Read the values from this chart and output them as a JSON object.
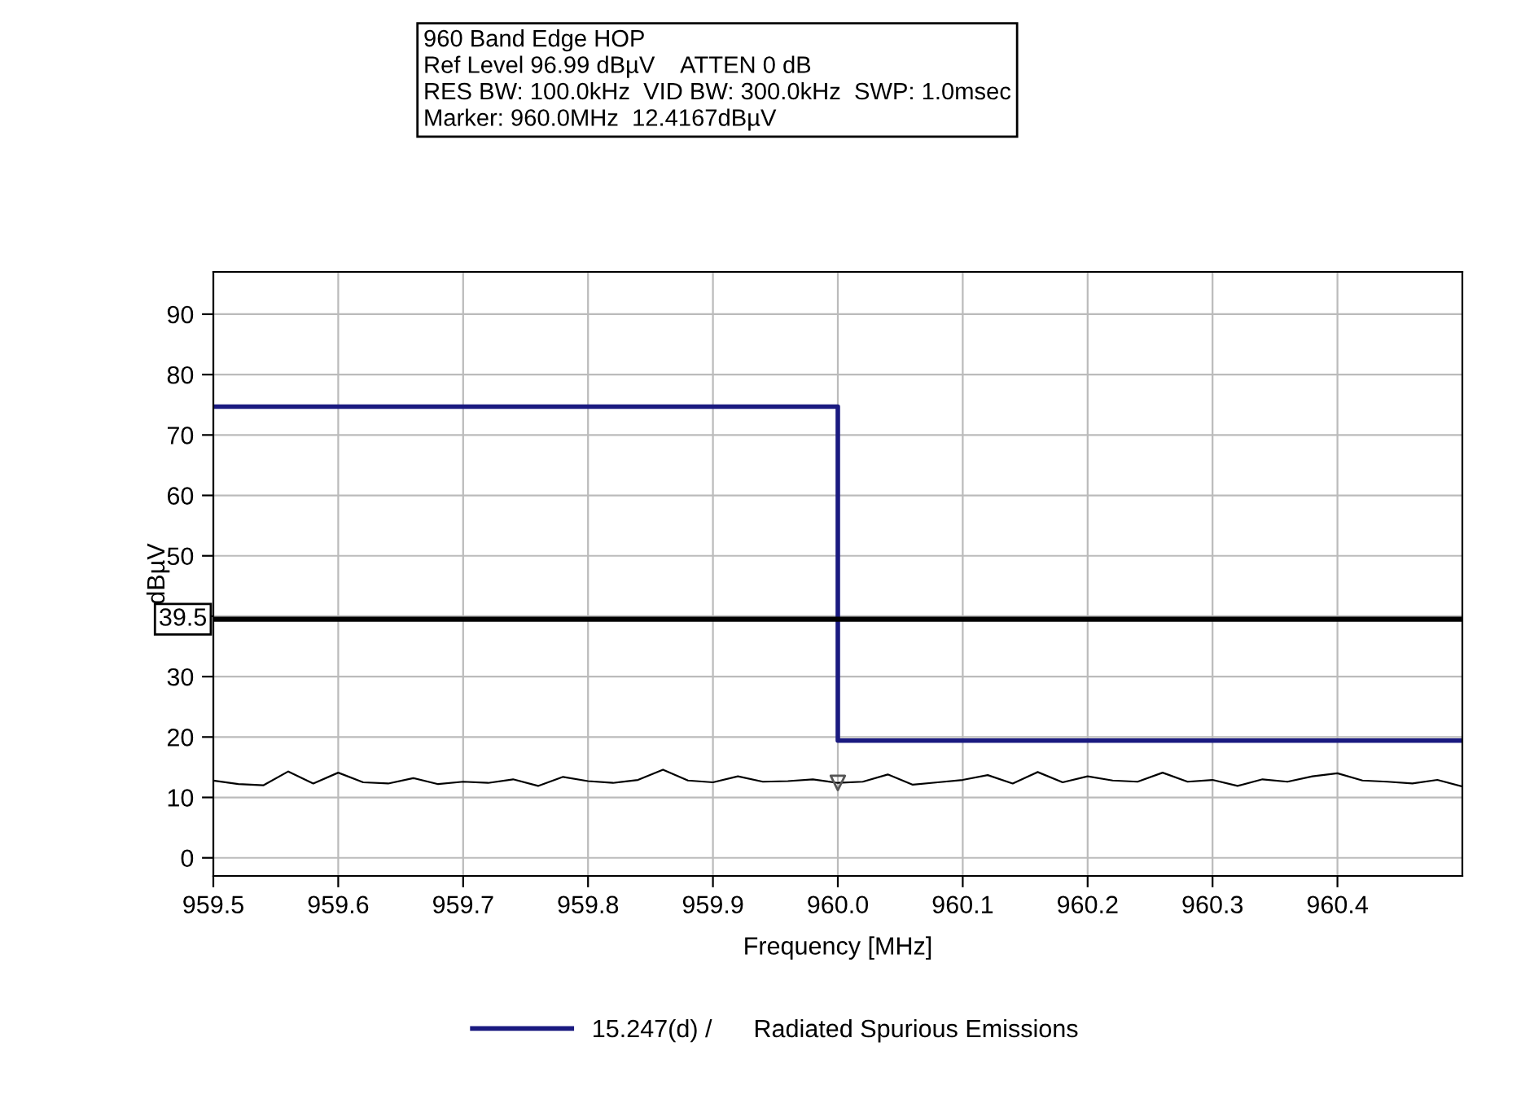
{
  "chart_data": {
    "type": "line",
    "annotations": [
      "960 Band Edge HOP",
      "Ref Level 96.99 dBµV    ATTEN 0 dB",
      "RES BW: 100.0kHz  VID BW: 300.0kHz  SWP: 1.0msec",
      "Marker: 960.0MHz  12.4167dBµV"
    ],
    "xlabel": "Frequency [MHz]",
    "ylabel": "dBµV",
    "xlim": [
      959.5,
      960.5
    ],
    "ylim": [
      -3,
      97
    ],
    "xticks": [
      {
        "value": 959.5,
        "label": "959.5"
      },
      {
        "value": 959.6,
        "label": "959.6"
      },
      {
        "value": 959.7,
        "label": "959.7"
      },
      {
        "value": 959.8,
        "label": "959.8"
      },
      {
        "value": 959.9,
        "label": "959.9"
      },
      {
        "value": 960.0,
        "label": "960.0"
      },
      {
        "value": 960.1,
        "label": "960.1"
      },
      {
        "value": 960.2,
        "label": "960.2"
      },
      {
        "value": 960.3,
        "label": "960.3"
      },
      {
        "value": 960.4,
        "label": "960.4"
      }
    ],
    "yticks": [
      0,
      10,
      20,
      30,
      {
        "value": 40,
        "label": null
      },
      50,
      60,
      70,
      80,
      90
    ],
    "grid": true,
    "legend": "bottom",
    "ref_lines": [
      {
        "axis": "y",
        "value": 39.5,
        "label": "39.5",
        "color": "#000000"
      }
    ],
    "series": [
      {
        "name": "15.247(d) /      Radiated Spurious Emissions",
        "type": "step",
        "color": "#1a1a80",
        "x": [
          959.5,
          960.0,
          960.5
        ],
        "values": [
          74.7,
          19.4,
          19.4
        ]
      },
      {
        "color": "#000000",
        "x": [
          959.5,
          959.52,
          959.54,
          959.56,
          959.58,
          959.6,
          959.62,
          959.64,
          959.66,
          959.68,
          959.7,
          959.72,
          959.74,
          959.76,
          959.78,
          959.8,
          959.82,
          959.84,
          959.86,
          959.88,
          959.9,
          959.92,
          959.94,
          959.96,
          959.98,
          960.0,
          960.02,
          960.04,
          960.06,
          960.08,
          960.1,
          960.12,
          960.14,
          960.16,
          960.18,
          960.2,
          960.22,
          960.24,
          960.26,
          960.28,
          960.3,
          960.32,
          960.34,
          960.36,
          960.38,
          960.4,
          960.42,
          960.44,
          960.46,
          960.48,
          960.5
        ],
        "values": [
          12.8,
          12.2,
          12.0,
          14.3,
          12.3,
          14.1,
          12.5,
          12.3,
          13.2,
          12.2,
          12.6,
          12.4,
          13.0,
          11.9,
          13.4,
          12.7,
          12.4,
          12.9,
          14.6,
          12.8,
          12.5,
          13.5,
          12.6,
          12.7,
          13.0,
          12.4,
          12.6,
          13.8,
          12.1,
          12.5,
          12.9,
          13.7,
          12.3,
          14.2,
          12.5,
          13.5,
          12.8,
          12.6,
          14.1,
          12.6,
          12.9,
          11.9,
          13.0,
          12.6,
          13.5,
          14.0,
          12.8,
          12.6,
          12.3,
          12.9,
          11.8
        ]
      },
      {
        "type": "scatter",
        "marker": "triangle",
        "color": "#555555",
        "x": [
          960.0
        ],
        "values": [
          12.4
        ]
      }
    ]
  }
}
